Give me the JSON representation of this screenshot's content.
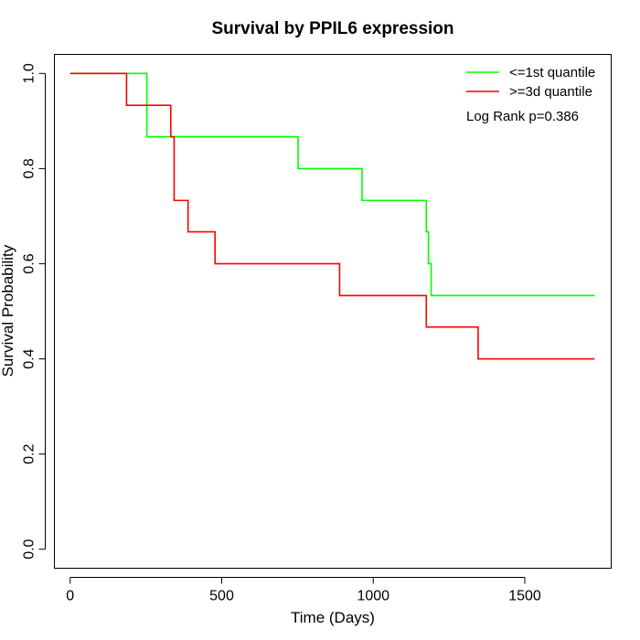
{
  "chart_data": {
    "type": "line",
    "step": true,
    "title": "Survival by PPIL6 expression",
    "xlabel": "Time (Days)",
    "ylabel": "Survival Probability",
    "xlim": [
      -52,
      1785
    ],
    "ylim": [
      -0.04,
      1.04
    ],
    "x_ticks": [
      0,
      500,
      1000,
      1500
    ],
    "y_ticks": [
      0.0,
      0.2,
      0.4,
      0.6,
      0.8,
      1.0
    ],
    "x_tick_labels": [
      "0",
      "500",
      "1000",
      "1500"
    ],
    "y_tick_labels": [
      "0.0",
      "0.2",
      "0.4",
      "0.6",
      "0.8",
      "1.0"
    ],
    "grid": false,
    "legend_position": "top-right",
    "annotation": "Log Rank p=0.386",
    "series": [
      {
        "name": "<=1st quantile",
        "color": "#00ff00",
        "points": [
          [
            0,
            1.0
          ],
          [
            253,
            1.0
          ],
          [
            253,
            0.867
          ],
          [
            752,
            0.867
          ],
          [
            752,
            0.8
          ],
          [
            963,
            0.8
          ],
          [
            963,
            0.733
          ],
          [
            1175,
            0.733
          ],
          [
            1175,
            0.667
          ],
          [
            1182,
            0.667
          ],
          [
            1182,
            0.6
          ],
          [
            1191,
            0.6
          ],
          [
            1191,
            0.533
          ],
          [
            1730,
            0.533
          ]
        ]
      },
      {
        "name": ">=3d quantile",
        "color": "#ff0000",
        "points": [
          [
            0,
            1.0
          ],
          [
            186,
            1.0
          ],
          [
            186,
            0.933
          ],
          [
            332,
            0.933
          ],
          [
            332,
            0.867
          ],
          [
            343,
            0.867
          ],
          [
            343,
            0.733
          ],
          [
            389,
            0.733
          ],
          [
            389,
            0.667
          ],
          [
            478,
            0.667
          ],
          [
            478,
            0.6
          ],
          [
            889,
            0.6
          ],
          [
            889,
            0.533
          ],
          [
            1175,
            0.533
          ],
          [
            1175,
            0.467
          ],
          [
            1346,
            0.467
          ],
          [
            1346,
            0.4
          ],
          [
            1730,
            0.4
          ]
        ]
      }
    ]
  }
}
